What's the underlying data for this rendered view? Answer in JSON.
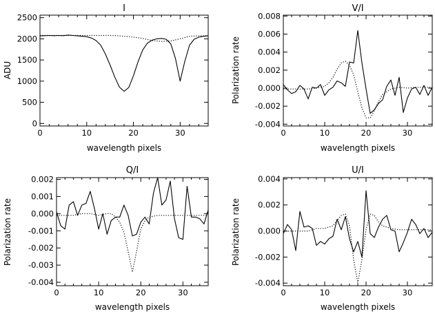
{
  "chart_data": [
    {
      "type": "line",
      "title": "I",
      "xlabel": "wavelength pixels",
      "ylabel": "ADU",
      "xlim": [
        0,
        36
      ],
      "ylim": [
        -60,
        2560
      ],
      "xticks": [
        0,
        10,
        20,
        30
      ],
      "xtick_labels": [
        "0",
        "10",
        "20",
        "30"
      ],
      "yticks": [
        0,
        500,
        1000,
        1500,
        2000,
        2500
      ],
      "ytick_labels": [
        "0",
        "500",
        "1000",
        "1500",
        "2000",
        "2500"
      ],
      "grid": false,
      "series": [
        {
          "style": "solid",
          "x": [
            0,
            1,
            2,
            3,
            4,
            5,
            6,
            7,
            8,
            9,
            10,
            11,
            12,
            13,
            14,
            15,
            16,
            17,
            18,
            19,
            20,
            21,
            22,
            23,
            24,
            25,
            26,
            27,
            28,
            29,
            30,
            31,
            32,
            33,
            34,
            35,
            36
          ],
          "y": [
            2070,
            2075,
            2080,
            2075,
            2080,
            2075,
            2090,
            2080,
            2070,
            2060,
            2050,
            2020,
            1960,
            1850,
            1640,
            1380,
            1100,
            860,
            760,
            850,
            1130,
            1460,
            1740,
            1900,
            1970,
            2000,
            2010,
            1990,
            1880,
            1530,
            1000,
            1470,
            1850,
            1990,
            2040,
            2060,
            2070
          ]
        },
        {
          "style": "dotted",
          "x": [
            0,
            2,
            4,
            6,
            8,
            10,
            12,
            14,
            16,
            17,
            18,
            19,
            20,
            22,
            24,
            26,
            28,
            30,
            32,
            34,
            36
          ],
          "y": [
            2080,
            2080,
            2080,
            2080,
            2080,
            2080,
            2080,
            2080,
            2080,
            2070,
            2060,
            2050,
            2040,
            2010,
            1960,
            1940,
            1950,
            2000,
            2060,
            2070,
            2075
          ]
        }
      ]
    },
    {
      "type": "line",
      "title": "V/I",
      "xlabel": "wavelength pixels",
      "ylabel": "Polarization rate",
      "xlim": [
        0,
        36
      ],
      "ylim": [
        -0.0042,
        0.0081
      ],
      "xticks": [
        0,
        10,
        20,
        30
      ],
      "xtick_labels": [
        "0",
        "10",
        "20",
        "30"
      ],
      "yticks": [
        -0.004,
        -0.002,
        0,
        0.002,
        0.004,
        0.006,
        0.008
      ],
      "ytick_labels": [
        "-0.004",
        "-0.002",
        "0.000",
        "0.002",
        "0.004",
        "0.006",
        "0.008"
      ],
      "grid": false,
      "series": [
        {
          "style": "solid",
          "x": [
            0,
            1,
            2,
            3,
            4,
            5,
            6,
            7,
            8,
            9,
            10,
            11,
            12,
            13,
            14,
            15,
            16,
            17,
            18,
            19,
            20,
            21,
            22,
            23,
            24,
            25,
            26,
            27,
            28,
            29,
            30,
            31,
            32,
            33,
            34,
            35,
            36
          ],
          "y": [
            0.0004,
            -0.0002,
            -0.0006,
            -0.0004,
            0.0003,
            -0.0001,
            -0.0012,
            0.0001,
            0.0,
            0.0004,
            -0.0008,
            -0.0002,
            0.0001,
            0.0008,
            0.0006,
            0.0002,
            0.0029,
            0.0028,
            0.0064,
            0.0028,
            -0.0001,
            -0.0028,
            -0.0024,
            -0.0017,
            -0.0013,
            0.0002,
            0.0009,
            -0.0008,
            0.0012,
            -0.0027,
            -0.0011,
            -0.0001,
            0.0001,
            -0.0007,
            0.0003,
            -0.0008,
            0.0001
          ]
        },
        {
          "style": "dotted",
          "x": [
            0,
            2,
            4,
            6,
            8,
            10,
            11,
            12,
            13,
            14,
            15,
            16,
            17,
            18,
            19,
            20,
            21,
            22,
            23,
            24,
            26,
            28,
            30,
            32,
            34,
            36
          ],
          "y": [
            -0.0001,
            -0.0001,
            -0.0001,
            -0.0001,
            0.0,
            0.0002,
            0.0006,
            0.0012,
            0.0021,
            0.0028,
            0.003,
            0.0025,
            0.0015,
            -0.0004,
            -0.0022,
            -0.0033,
            -0.0033,
            -0.0025,
            -0.0015,
            -0.0007,
            -0.0001,
            0.0001,
            0.0,
            0.0001,
            0.0001,
            0.0001
          ]
        }
      ]
    },
    {
      "type": "line",
      "title": "Q/I",
      "xlabel": "wavelength pixels",
      "ylabel": "Polarization rate",
      "xlim": [
        0,
        36
      ],
      "ylim": [
        -0.0042,
        0.0021
      ],
      "xticks": [
        0,
        10,
        20,
        30
      ],
      "xtick_labels": [
        "0",
        "10",
        "20",
        "30"
      ],
      "yticks": [
        -0.004,
        -0.003,
        -0.002,
        -0.001,
        0,
        0.001,
        0.002
      ],
      "ytick_labels": [
        "-0.004",
        "-0.003",
        "-0.002",
        "-0.001",
        "0.000",
        "0.001",
        "0.002"
      ],
      "grid": false,
      "series": [
        {
          "style": "solid",
          "x": [
            0,
            1,
            2,
            3,
            4,
            5,
            6,
            7,
            8,
            9,
            10,
            11,
            12,
            13,
            14,
            15,
            16,
            17,
            18,
            19,
            20,
            21,
            22,
            23,
            24,
            25,
            26,
            27,
            28,
            29,
            30,
            31,
            32,
            33,
            34,
            35,
            36
          ],
          "y": [
            0.0001,
            -0.0007,
            -0.0009,
            0.0005,
            0.0007,
            -0.0001,
            0.0005,
            0.0006,
            0.0013,
            0.0003,
            -0.0009,
            0.0,
            -0.0012,
            -0.0004,
            -0.0002,
            -0.0002,
            0.0005,
            -0.0001,
            -0.0013,
            -0.0012,
            -0.0005,
            -0.0002,
            -0.0006,
            0.0012,
            0.0021,
            0.0005,
            0.0008,
            0.0019,
            -0.0003,
            -0.0014,
            -0.0015,
            0.0016,
            -0.0002,
            -0.0002,
            -0.0003,
            -0.0006,
            0.0002
          ]
        },
        {
          "style": "dotted",
          "x": [
            0,
            2,
            4,
            6,
            8,
            10,
            12,
            13,
            14,
            15,
            16,
            17,
            18,
            19,
            20,
            21,
            22,
            24,
            26,
            28,
            30,
            32,
            34,
            36
          ],
          "y": [
            -0.0001,
            -0.0001,
            -0.0001,
            0.0,
            0.0,
            -0.0001,
            0.0,
            0.0,
            -0.0002,
            -0.0005,
            -0.0011,
            -0.0022,
            -0.0034,
            -0.0022,
            -0.0009,
            -0.0004,
            -0.0002,
            -0.0001,
            -0.0001,
            -0.0001,
            -0.0001,
            -0.0001,
            -0.0001,
            -0.0001
          ]
        }
      ]
    },
    {
      "type": "line",
      "title": "U/I",
      "xlabel": "wavelength pixels",
      "ylabel": "Polarization rate",
      "xlim": [
        0,
        36
      ],
      "ylim": [
        -0.0042,
        0.0041
      ],
      "xticks": [
        0,
        10,
        20,
        30
      ],
      "xtick_labels": [
        "0",
        "10",
        "20",
        "30"
      ],
      "yticks": [
        -0.004,
        -0.002,
        0,
        0.002,
        0.004
      ],
      "ytick_labels": [
        "-0.004",
        "-0.002",
        "0.000",
        "0.002",
        "0.004"
      ],
      "grid": false,
      "series": [
        {
          "style": "solid",
          "x": [
            0,
            1,
            2,
            3,
            4,
            5,
            6,
            7,
            8,
            9,
            10,
            11,
            12,
            13,
            14,
            15,
            16,
            17,
            18,
            19,
            20,
            21,
            22,
            23,
            24,
            25,
            26,
            27,
            28,
            29,
            30,
            31,
            32,
            33,
            34,
            35,
            36
          ],
          "y": [
            -0.0002,
            0.0005,
            0.0001,
            -0.0015,
            0.0015,
            0.0003,
            0.0004,
            0.0002,
            -0.0011,
            -0.0008,
            -0.001,
            -0.0006,
            -0.0004,
            0.0009,
            0.0001,
            0.0011,
            -0.0006,
            -0.0016,
            -0.0008,
            -0.002,
            0.0031,
            -0.0002,
            -0.0005,
            0.0003,
            0.0009,
            0.0012,
            0.0001,
            0.0,
            -0.0016,
            -0.0009,
            -0.0001,
            0.0009,
            0.0005,
            -0.0002,
            0.0002,
            -0.0005,
            -0.0001
          ]
        },
        {
          "style": "dotted",
          "x": [
            0,
            2,
            4,
            6,
            8,
            10,
            12,
            13,
            14,
            15,
            16,
            17,
            18,
            19,
            20,
            21,
            22,
            23,
            24,
            26,
            28,
            30,
            32,
            34,
            36
          ],
          "y": [
            0.0,
            0.0,
            0.0,
            0.0,
            0.0002,
            0.0002,
            0.0004,
            0.0008,
            0.0012,
            0.0013,
            0.0004,
            -0.0022,
            -0.004,
            -0.0022,
            0.0001,
            0.0013,
            0.0012,
            0.0007,
            0.0004,
            0.0002,
            0.0001,
            0.0001,
            0.0001,
            0.0001,
            0.0001
          ]
        }
      ]
    }
  ]
}
